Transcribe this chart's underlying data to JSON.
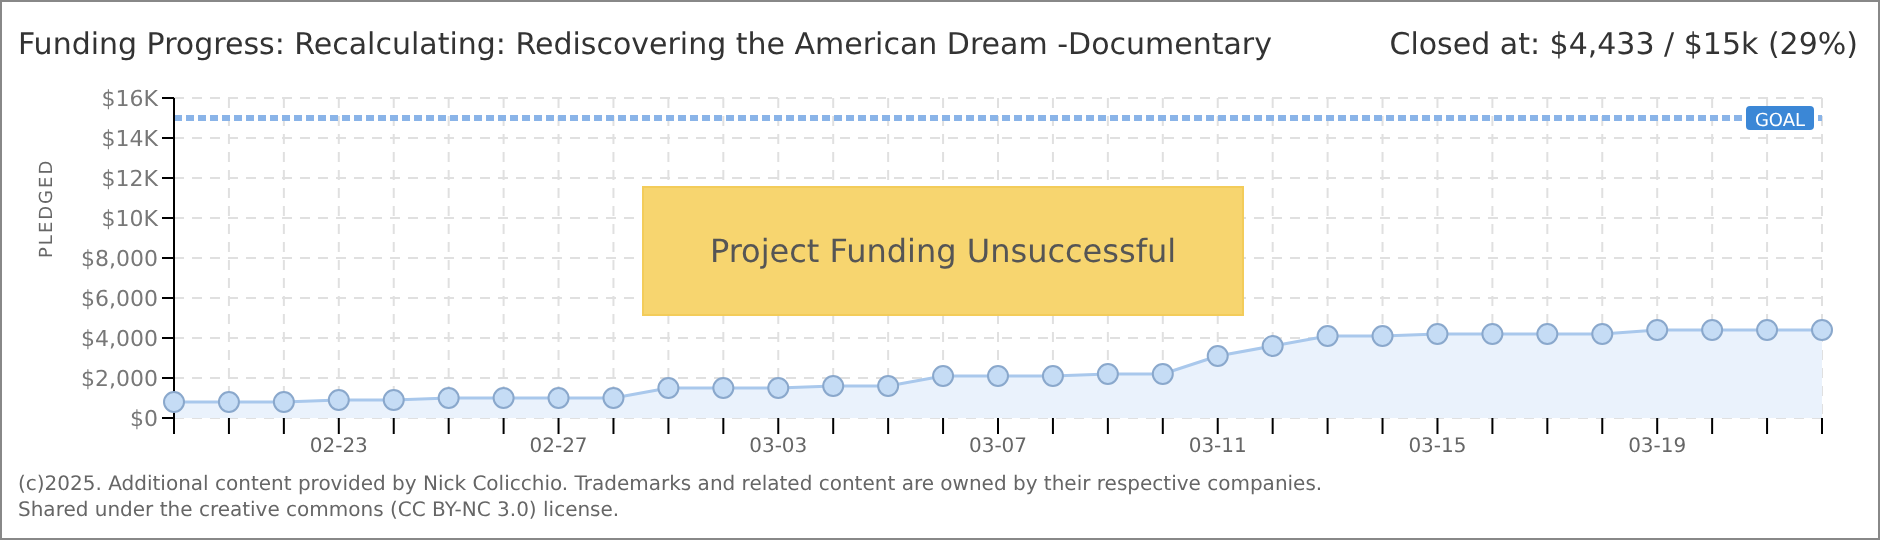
{
  "chart_data": {
    "type": "area",
    "title": "Funding Progress: Recalculating: Rediscovering the American Dream -Documentary",
    "subtitle": "Closed at: $4,433 / $15k (29%)",
    "ylabel": "PLEDGED",
    "categories": [
      null,
      null,
      null,
      "02-23",
      null,
      null,
      null,
      "02-27",
      null,
      null,
      null,
      "03-03",
      null,
      null,
      null,
      "03-07",
      null,
      null,
      null,
      "03-11",
      null,
      null,
      null,
      "03-15",
      null,
      null,
      null,
      "03-19",
      null,
      null,
      null
    ],
    "series": [
      {
        "color": "#a9c8ec",
        "values": [
          800,
          800,
          800,
          900,
          900,
          1000,
          1000,
          1000,
          1000,
          1500,
          1500,
          1500,
          1600,
          1600,
          2100,
          2100,
          2100,
          2200,
          2200,
          3100,
          3600,
          4100,
          4100,
          4200,
          4200,
          4200,
          4200,
          4400,
          4400,
          4400,
          4400
        ]
      }
    ],
    "ylim": [
      0,
      16000
    ],
    "yticks": [
      {
        "value": 0,
        "label": "$0"
      },
      {
        "value": 2000,
        "label": "$2,000"
      },
      {
        "value": 4000,
        "label": "$4,000"
      },
      {
        "value": 6000,
        "label": "$6,000"
      },
      {
        "value": 8000,
        "label": "$8,000"
      },
      {
        "value": 10000,
        "label": "$10K"
      },
      {
        "value": 12000,
        "label": "$12K"
      },
      {
        "value": 14000,
        "label": "$14K"
      },
      {
        "value": 16000,
        "label": "$16K"
      }
    ],
    "ref_lines": [
      {
        "axis": "y",
        "value": 15000,
        "label": "GOAL",
        "color": "#8ab4e8",
        "line_style": "dotted"
      }
    ],
    "grid": true,
    "marker": "circle",
    "legend": false,
    "annotations": [
      "Project Funding Unsuccessful",
      "(c)2025. Additional content provided by Nick Colicchio. Trademarks and related content are owned by their respective companies.",
      "Shared under the creative commons (CC BY-NC 3.0) license."
    ]
  }
}
